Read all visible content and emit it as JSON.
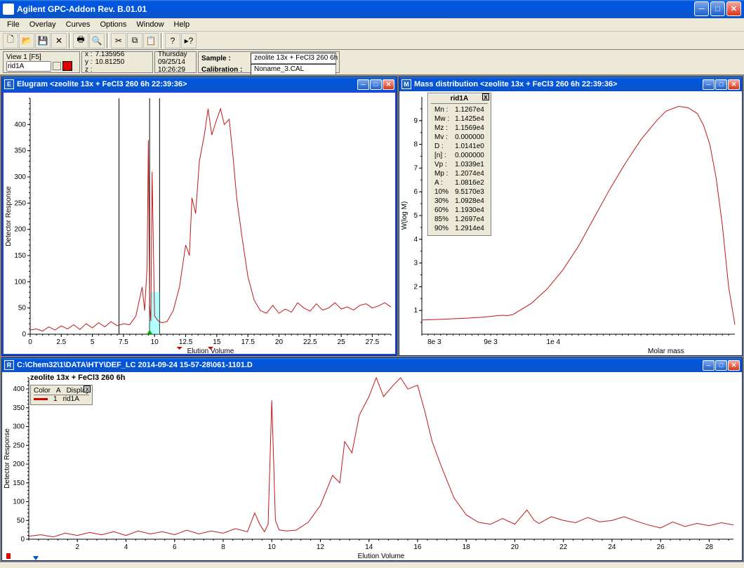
{
  "app": {
    "title": "Agilent GPC-Addon  Rev. B.01.01"
  },
  "menu": {
    "items": [
      "File",
      "Overlay",
      "Curves",
      "Options",
      "Window",
      "Help"
    ]
  },
  "toolbar_icons": [
    "new",
    "open",
    "save",
    "delete",
    "|",
    "print",
    "preview",
    "|",
    "cut",
    "copy",
    "paste",
    "|",
    "help",
    "whats-this"
  ],
  "info": {
    "view_label": "View 1 [F5]",
    "trace_name": "rid1A",
    "x_label": "x :",
    "x_val": "7.135956",
    "y_label": "y :",
    "y_val": "10.81250",
    "z_label": "z :",
    "z_val": "",
    "day": "Thursday",
    "date": "09/25/14",
    "time": "10:26:29",
    "sample_label": "Sample :",
    "sample_val": "zeolite 13x + FeCl3 260 6h",
    "calib_label": "Calibration :",
    "calib_val": "Noname_3.CAL"
  },
  "elugram": {
    "badge": "E",
    "title": "Elugram <zeolite 13x + FeCl3 260 6h  22:39:36>",
    "xlabel": "Elution Volume",
    "ylabel": "Detector Response",
    "xlim": [
      0,
      29
    ],
    "ylim": [
      0,
      450
    ],
    "xticks": [
      0.0,
      2.5,
      5.0,
      7.5,
      10.0,
      12.5,
      15.0,
      17.5,
      20.0,
      22.5,
      25.0,
      27.5
    ],
    "yticks": [
      0,
      50,
      100,
      150,
      200,
      250,
      300,
      350,
      400
    ],
    "cursor_x": 7.14,
    "markers_x": [
      9.6,
      10.4
    ],
    "bottom_markers_x": [
      12.0,
      14.5
    ],
    "line_color": "#c01818",
    "series": [
      [
        0,
        8
      ],
      [
        0.5,
        10
      ],
      [
        1,
        6
      ],
      [
        1.5,
        14
      ],
      [
        2,
        8
      ],
      [
        2.5,
        16
      ],
      [
        3,
        10
      ],
      [
        3.5,
        18
      ],
      [
        4,
        9
      ],
      [
        4.5,
        20
      ],
      [
        5,
        12
      ],
      [
        5.5,
        22
      ],
      [
        6,
        14
      ],
      [
        6.5,
        24
      ],
      [
        7,
        16
      ],
      [
        7.5,
        20
      ],
      [
        8,
        18
      ],
      [
        8.5,
        35
      ],
      [
        9,
        90
      ],
      [
        9.2,
        45
      ],
      [
        9.4,
        130
      ],
      [
        9.5,
        370
      ],
      [
        9.6,
        55
      ],
      [
        9.7,
        25
      ],
      [
        9.8,
        310
      ],
      [
        10,
        35
      ],
      [
        10.3,
        25
      ],
      [
        10.6,
        22
      ],
      [
        11,
        24
      ],
      [
        11.5,
        45
      ],
      [
        12,
        90
      ],
      [
        12.5,
        170
      ],
      [
        12.8,
        150
      ],
      [
        13,
        260
      ],
      [
        13.3,
        230
      ],
      [
        13.6,
        330
      ],
      [
        14,
        380
      ],
      [
        14.3,
        430
      ],
      [
        14.6,
        380
      ],
      [
        15,
        410
      ],
      [
        15.3,
        430
      ],
      [
        15.6,
        400
      ],
      [
        16,
        410
      ],
      [
        16.3,
        340
      ],
      [
        16.6,
        260
      ],
      [
        17,
        190
      ],
      [
        17.5,
        110
      ],
      [
        18,
        65
      ],
      [
        18.5,
        45
      ],
      [
        19,
        40
      ],
      [
        19.5,
        55
      ],
      [
        20,
        40
      ],
      [
        20.5,
        48
      ],
      [
        21,
        42
      ],
      [
        21.5,
        60
      ],
      [
        22,
        50
      ],
      [
        22.5,
        44
      ],
      [
        23,
        58
      ],
      [
        23.5,
        46
      ],
      [
        24,
        50
      ],
      [
        24.5,
        60
      ],
      [
        25,
        48
      ],
      [
        25.5,
        52
      ],
      [
        26,
        46
      ],
      [
        26.5,
        55
      ],
      [
        27,
        58
      ],
      [
        27.5,
        50
      ],
      [
        28,
        54
      ],
      [
        28.5,
        60
      ],
      [
        29,
        52
      ]
    ]
  },
  "massdist": {
    "badge": "M",
    "title": "Mass distribution <zeolite 13x + FeCl3 260 6h  22:39:36>",
    "xlabel": "Molar mass",
    "ylabel": "W(log M)",
    "xticks_labels": [
      "8e 3",
      "9e 3",
      "1e 4"
    ],
    "yticks": [
      1,
      2,
      3,
      4,
      5,
      6,
      7,
      8,
      9
    ],
    "line_color": "#c01818",
    "stats_header": "rid1A",
    "stats": [
      [
        "Mn :",
        "1.1267e4"
      ],
      [
        "Mw :",
        "1.1425e4"
      ],
      [
        "Mz :",
        "1.1569e4"
      ],
      [
        "Mv :",
        "0.000000"
      ],
      [
        "D :",
        "1.0141e0"
      ],
      [
        "[n] :",
        "0.000000"
      ],
      [
        "Vp :",
        "1.0339e1"
      ],
      [
        "Mp :",
        "1.2074e4"
      ],
      [
        "A :",
        "1.0816e2"
      ],
      [
        "10%",
        "9.5170e3"
      ],
      [
        "30%",
        "1.0928e4"
      ],
      [
        "60%",
        "1.1930e4"
      ],
      [
        "85%",
        "1.2697e4"
      ],
      [
        "90%",
        "1.2914e4"
      ]
    ],
    "series": [
      [
        0,
        0.6
      ],
      [
        0.05,
        0.62
      ],
      [
        0.1,
        0.65
      ],
      [
        0.15,
        0.68
      ],
      [
        0.2,
        0.72
      ],
      [
        0.24,
        0.78
      ],
      [
        0.26,
        0.8
      ],
      [
        0.27,
        0.78
      ],
      [
        0.29,
        0.82
      ],
      [
        0.3,
        0.9
      ],
      [
        0.35,
        1.3
      ],
      [
        0.4,
        1.9
      ],
      [
        0.45,
        2.7
      ],
      [
        0.5,
        3.7
      ],
      [
        0.55,
        4.9
      ],
      [
        0.6,
        6.1
      ],
      [
        0.65,
        7.2
      ],
      [
        0.7,
        8.2
      ],
      [
        0.75,
        9.0
      ],
      [
        0.78,
        9.4
      ],
      [
        0.82,
        9.6
      ],
      [
        0.85,
        9.55
      ],
      [
        0.88,
        9.3
      ],
      [
        0.9,
        8.8
      ],
      [
        0.92,
        8.0
      ],
      [
        0.94,
        6.6
      ],
      [
        0.96,
        4.6
      ],
      [
        0.98,
        2.0
      ],
      [
        1.0,
        0.4
      ]
    ]
  },
  "raw": {
    "badge": "R",
    "title": "C:\\Chem32\\1\\DATA\\HTY\\DEF_LC 2014-09-24 15-57-28\\061-1101.D",
    "inner_title": "zeolite 13x + FeCl3 260 6h",
    "xlabel": "Elution Volume",
    "ylabel": "Detector Response",
    "xlim": [
      0,
      29
    ],
    "ylim": [
      0,
      430
    ],
    "xticks": [
      2,
      4,
      6,
      8,
      10,
      12,
      14,
      16,
      18,
      20,
      22,
      24,
      26,
      28
    ],
    "yticks": [
      0,
      50,
      100,
      150,
      200,
      250,
      300,
      350,
      400
    ],
    "line_color": "#c01818",
    "legend": {
      "cols": [
        "Color",
        "A",
        "Display"
      ],
      "row": [
        "",
        "1",
        "rid1A"
      ]
    },
    "series": [
      [
        0,
        8
      ],
      [
        0.5,
        12
      ],
      [
        1,
        6
      ],
      [
        1.5,
        16
      ],
      [
        2,
        10
      ],
      [
        2.5,
        18
      ],
      [
        3,
        12
      ],
      [
        3.5,
        20
      ],
      [
        4,
        10
      ],
      [
        4.5,
        22
      ],
      [
        5,
        14
      ],
      [
        5.5,
        20
      ],
      [
        6,
        12
      ],
      [
        6.5,
        24
      ],
      [
        7,
        14
      ],
      [
        7.5,
        22
      ],
      [
        8,
        16
      ],
      [
        8.5,
        28
      ],
      [
        9,
        20
      ],
      [
        9.3,
        70
      ],
      [
        9.5,
        40
      ],
      [
        9.7,
        20
      ],
      [
        9.85,
        40
      ],
      [
        10,
        370
      ],
      [
        10.15,
        50
      ],
      [
        10.3,
        25
      ],
      [
        10.6,
        22
      ],
      [
        11,
        24
      ],
      [
        11.5,
        45
      ],
      [
        12,
        90
      ],
      [
        12.5,
        170
      ],
      [
        12.8,
        150
      ],
      [
        13,
        260
      ],
      [
        13.3,
        230
      ],
      [
        13.6,
        330
      ],
      [
        14,
        380
      ],
      [
        14.3,
        430
      ],
      [
        14.6,
        380
      ],
      [
        15,
        410
      ],
      [
        15.3,
        430
      ],
      [
        15.6,
        400
      ],
      [
        16,
        410
      ],
      [
        16.3,
        340
      ],
      [
        16.6,
        260
      ],
      [
        17,
        190
      ],
      [
        17.5,
        110
      ],
      [
        18,
        65
      ],
      [
        18.5,
        45
      ],
      [
        19,
        40
      ],
      [
        19.5,
        55
      ],
      [
        20,
        40
      ],
      [
        20.5,
        78
      ],
      [
        20.8,
        50
      ],
      [
        21,
        42
      ],
      [
        21.5,
        60
      ],
      [
        22,
        50
      ],
      [
        22.5,
        44
      ],
      [
        23,
        58
      ],
      [
        23.5,
        46
      ],
      [
        24,
        50
      ],
      [
        24.5,
        60
      ],
      [
        25,
        48
      ],
      [
        25.5,
        38
      ],
      [
        26,
        30
      ],
      [
        26.5,
        46
      ],
      [
        27,
        34
      ],
      [
        27.5,
        42
      ],
      [
        28,
        36
      ],
      [
        28.5,
        44
      ],
      [
        29,
        38
      ]
    ]
  },
  "colors": {
    "xp_blue": "#0056e0",
    "bg": "#ece9d8"
  }
}
